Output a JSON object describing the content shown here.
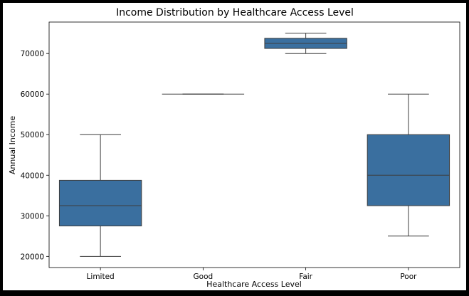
{
  "chart_data": {
    "type": "box",
    "title": "Income Distribution by Healthcare Access Level",
    "xlabel": "Healthcare Access Level",
    "ylabel": "Annual Income",
    "categories": [
      "Limited",
      "Good",
      "Fair",
      "Poor"
    ],
    "boxes": [
      {
        "category": "Limited",
        "whislo": 20000,
        "q1": 27500,
        "med": 32500,
        "q3": 38750,
        "whishi": 50000
      },
      {
        "category": "Good",
        "whislo": 60000,
        "q1": 60000,
        "med": 60000,
        "q3": 60000,
        "whishi": 60000
      },
      {
        "category": "Fair",
        "whislo": 70000,
        "q1": 71250,
        "med": 72500,
        "q3": 73750,
        "whishi": 75000
      },
      {
        "category": "Poor",
        "whislo": 25000,
        "q1": 32500,
        "med": 40000,
        "q3": 50000,
        "whishi": 60000
      }
    ],
    "yticks": [
      20000,
      30000,
      40000,
      50000,
      60000,
      70000
    ],
    "ytick_labels": [
      "20000",
      "30000",
      "40000",
      "50000",
      "60000",
      "70000"
    ],
    "ylim": [
      17250,
      77750
    ],
    "grid": false,
    "box_color": "#3a6f9f",
    "line_color": "#3d3d3d"
  }
}
